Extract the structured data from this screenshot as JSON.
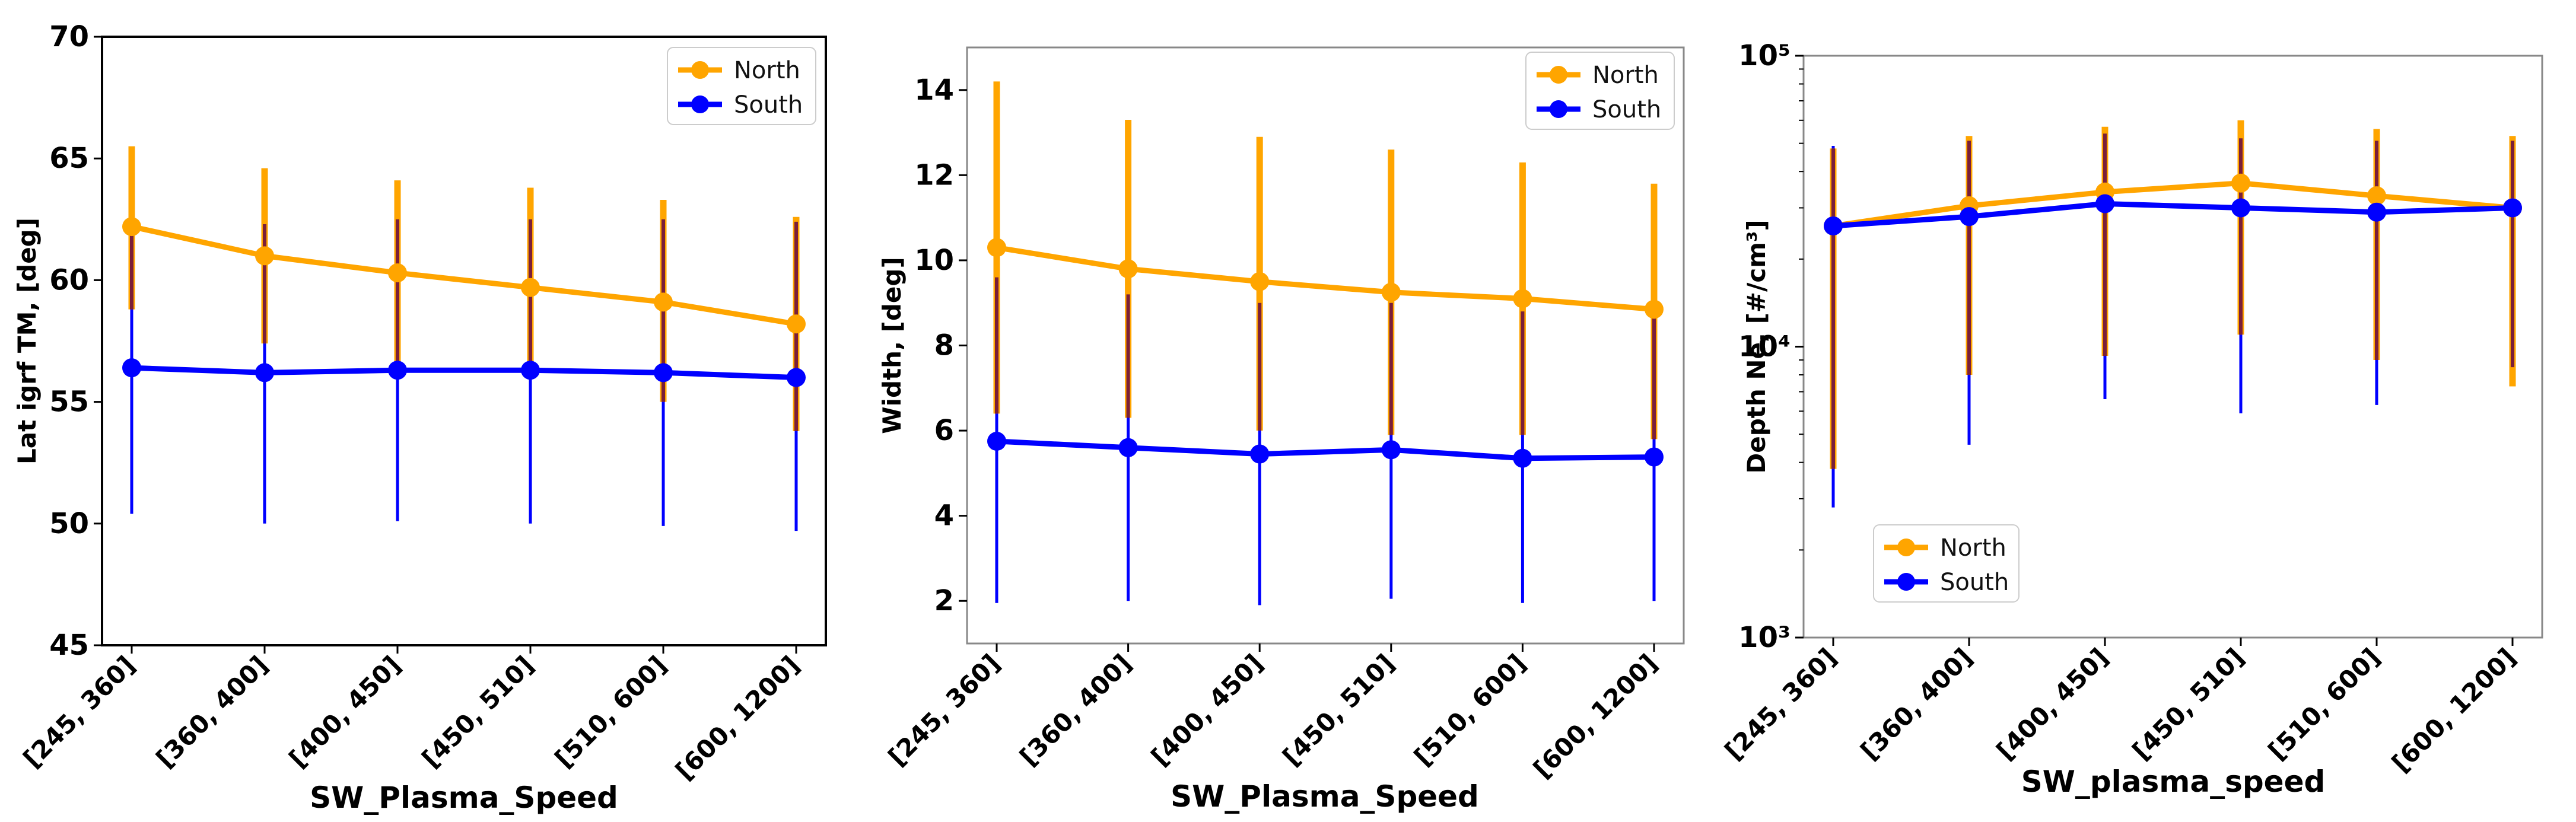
{
  "chart_data": [
    {
      "type": "line",
      "categories": [
        "[245, 360]",
        "[360, 400]",
        "[400, 450]",
        "[450, 510]",
        "[510, 600]",
        "[600, 1200]"
      ],
      "xlabel": "SW_Plasma_Speed",
      "ylabel": "Lat igrf TM, [deg]",
      "ylim": [
        45,
        70
      ],
      "yscale": "linear",
      "yticks": [
        45,
        50,
        55,
        60,
        65,
        70
      ],
      "ytick_labels": [
        "45",
        "50",
        "55",
        "60",
        "65",
        "70"
      ],
      "legend_position": "top-right",
      "series": [
        {
          "name": "North",
          "color": "#FFA500",
          "values": [
            62.2,
            61.0,
            60.3,
            59.7,
            59.1,
            58.2
          ],
          "err_low": [
            58.8,
            57.4,
            56.5,
            56.0,
            55.0,
            53.8
          ],
          "err_high": [
            65.5,
            64.6,
            64.1,
            63.8,
            63.3,
            62.6
          ]
        },
        {
          "name": "South",
          "color": "#0000FF",
          "values": [
            56.4,
            56.2,
            56.3,
            56.3,
            56.2,
            56.0
          ],
          "err_low": [
            50.4,
            50.0,
            50.1,
            50.0,
            49.9,
            49.7
          ],
          "err_high": [
            62.3,
            62.3,
            62.5,
            62.5,
            62.5,
            62.4
          ]
        }
      ]
    },
    {
      "type": "line",
      "categories": [
        "[245, 360]",
        "[360, 400]",
        "[400, 450]",
        "[450, 510]",
        "[510, 600]",
        "[600, 1200]"
      ],
      "xlabel": "SW_Plasma_Speed",
      "ylabel": "Width, [deg]",
      "ylim": [
        1,
        15
      ],
      "yscale": "linear",
      "yticks": [
        2,
        4,
        6,
        8,
        10,
        12,
        14
      ],
      "ytick_labels": [
        "2",
        "4",
        "6",
        "8",
        "10",
        "12",
        "14"
      ],
      "legend_position": "top-right",
      "series": [
        {
          "name": "North",
          "color": "#FFA500",
          "values": [
            10.3,
            9.8,
            9.5,
            9.25,
            9.1,
            8.85
          ],
          "err_low": [
            6.4,
            6.3,
            6.0,
            5.9,
            5.9,
            5.8
          ],
          "err_high": [
            14.2,
            13.3,
            12.9,
            12.6,
            12.3,
            11.8
          ]
        },
        {
          "name": "South",
          "color": "#0000FF",
          "values": [
            5.75,
            5.6,
            5.45,
            5.55,
            5.35,
            5.38
          ],
          "err_low": [
            1.95,
            2.0,
            1.9,
            2.05,
            1.95,
            2.0
          ],
          "err_high": [
            9.6,
            9.2,
            9.0,
            9.0,
            8.8,
            8.8
          ]
        }
      ]
    },
    {
      "type": "line",
      "categories": [
        "[245, 360]",
        "[360, 400]",
        "[400, 450]",
        "[450, 510]",
        "[510, 600]",
        "[600, 1200]"
      ],
      "xlabel": "SW_plasma_speed",
      "ylabel": "Depth Ne, [#/cm³]",
      "ylim": [
        1000,
        100000
      ],
      "yscale": "log",
      "yticks": [
        1000,
        10000,
        100000
      ],
      "ytick_labels": [
        "10³",
        "10⁴",
        "10⁵"
      ],
      "legend_position": "lower-left",
      "series": [
        {
          "name": "North",
          "color": "#FFA500",
          "values": [
            26000,
            30500,
            34000,
            36500,
            33000,
            30000
          ],
          "err_low": [
            3800,
            8000,
            9300,
            11000,
            9000,
            7300
          ],
          "err_high": [
            48000,
            53000,
            57000,
            60000,
            56000,
            53000
          ]
        },
        {
          "name": "South",
          "color": "#0000FF",
          "values": [
            26000,
            28000,
            31000,
            30000,
            29000,
            30000
          ],
          "err_low": [
            2800,
            4600,
            6600,
            5900,
            6300,
            8500
          ],
          "err_high": [
            49000,
            51000,
            54000,
            52000,
            51000,
            51000
          ]
        }
      ]
    }
  ]
}
